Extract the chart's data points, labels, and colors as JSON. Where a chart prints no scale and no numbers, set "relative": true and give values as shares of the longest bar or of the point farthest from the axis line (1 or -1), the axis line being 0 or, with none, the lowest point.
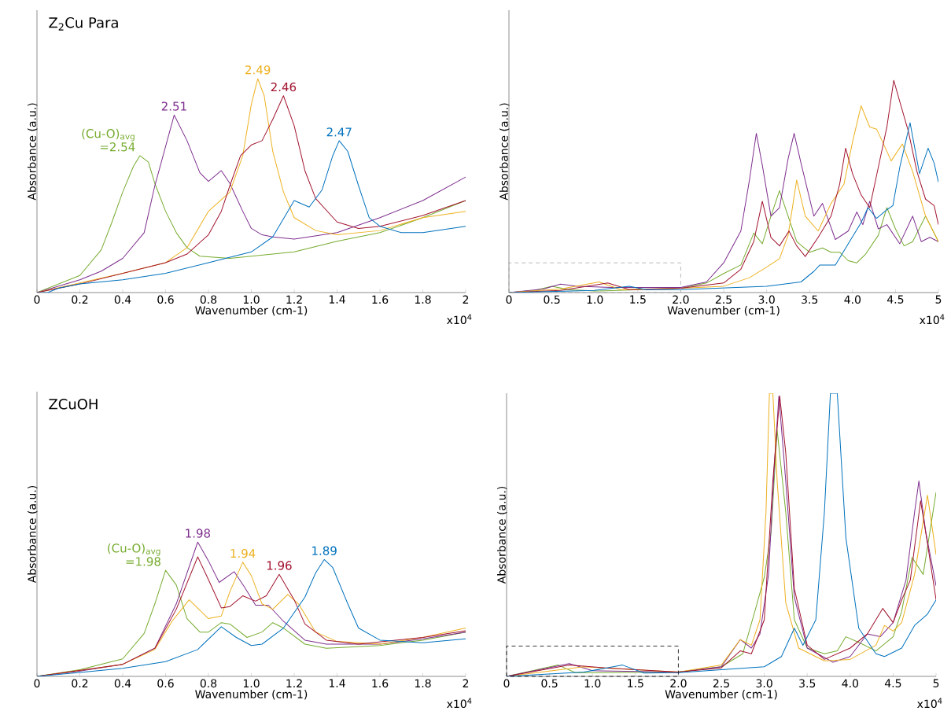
{
  "chart_data": [
    {
      "type": "line",
      "relative": true,
      "title": "Z$_{2}$Cu Para",
      "xlabel": "Wavenumber (cm-1)",
      "ylabel": "Absorbance (a.u.)",
      "xlim": [
        0,
        2
      ],
      "xticks": [
        0,
        0.2,
        0.4,
        0.6,
        0.8,
        {
          "value": 1.0,
          "label": "1.0"
        },
        1.2,
        1.4,
        1.6,
        1.8,
        2
      ],
      "series": [
        {
          "color": "#77ac30",
          "x": [
            0,
            0.1,
            0.2,
            0.3,
            0.35,
            0.4,
            0.45,
            0.48,
            0.52,
            0.55,
            0.6,
            0.65,
            0.7,
            0.76,
            0.9,
            1.0,
            1.2,
            1.4,
            1.6,
            1.8,
            2.0
          ],
          "values": [
            0,
            0.04,
            0.08,
            0.2,
            0.33,
            0.47,
            0.59,
            0.64,
            0.61,
            0.51,
            0.38,
            0.28,
            0.21,
            0.17,
            0.16,
            0.17,
            0.19,
            0.24,
            0.28,
            0.35,
            0.43
          ]
        },
        {
          "color": "#7e2f8e",
          "x": [
            0,
            0.2,
            0.3,
            0.4,
            0.5,
            0.55,
            0.64,
            0.7,
            0.76,
            0.8,
            0.86,
            0.9,
            0.96,
            1.0,
            1.05,
            1.1,
            1.2,
            1.4,
            1.6,
            1.8,
            2.0
          ],
          "values": [
            0,
            0.06,
            0.1,
            0.16,
            0.28,
            0.5,
            0.83,
            0.71,
            0.56,
            0.52,
            0.57,
            0.51,
            0.38,
            0.3,
            0.27,
            0.26,
            0.25,
            0.28,
            0.35,
            0.43,
            0.54
          ]
        },
        {
          "color": "#edb120",
          "x": [
            0,
            0.2,
            0.4,
            0.6,
            0.7,
            0.8,
            0.9,
            0.96,
            1.0,
            1.03,
            1.06,
            1.1,
            1.15,
            1.2,
            1.3,
            1.4,
            1.6,
            1.8,
            2.0
          ],
          "values": [
            0,
            0.045,
            0.09,
            0.14,
            0.21,
            0.38,
            0.47,
            0.64,
            0.88,
            1.0,
            0.92,
            0.66,
            0.47,
            0.35,
            0.29,
            0.27,
            0.29,
            0.35,
            0.38
          ]
        },
        {
          "color": "#a2142f",
          "x": [
            0,
            0.2,
            0.4,
            0.6,
            0.7,
            0.8,
            0.86,
            0.9,
            0.95,
            1.0,
            1.05,
            1.1,
            1.15,
            1.2,
            1.25,
            1.3,
            1.4,
            1.5,
            1.6,
            1.8,
            2.0
          ],
          "values": [
            0,
            0.04,
            0.09,
            0.14,
            0.18,
            0.27,
            0.38,
            0.5,
            0.64,
            0.69,
            0.71,
            0.81,
            0.92,
            0.78,
            0.57,
            0.44,
            0.33,
            0.3,
            0.31,
            0.36,
            0.43
          ]
        },
        {
          "color": "#0072bd",
          "x": [
            0,
            0.05,
            0.1,
            0.2,
            0.4,
            0.6,
            0.8,
            1.0,
            1.1,
            1.2,
            1.27,
            1.33,
            1.38,
            1.41,
            1.45,
            1.5,
            1.55,
            1.6,
            1.7,
            1.8,
            2.0
          ],
          "values": [
            0,
            0,
            0.02,
            0.04,
            0.06,
            0.09,
            0.14,
            0.19,
            0.26,
            0.43,
            0.4,
            0.48,
            0.64,
            0.71,
            0.66,
            0.5,
            0.35,
            0.31,
            0.28,
            0.28,
            0.31
          ]
        }
      ],
      "annotations": [
        {
          "text": "(Cu-O)$_{avg}$ =2.54",
          "x": 0.48,
          "y": 0.64
        },
        {
          "text": "2.51",
          "x": 0.64,
          "y": 0.83
        },
        {
          "text": "2.49",
          "x": 1.03,
          "y": 1.0
        },
        {
          "text": "2.46",
          "x": 1.15,
          "y": 0.92
        },
        {
          "text": "2.47",
          "x": 1.41,
          "y": 0.71
        },
        "x10$^{4}$"
      ]
    },
    {
      "type": "line",
      "relative": true,
      "xlabel": "Wavenumber (cm-1)",
      "ylabel": "Absorbance (a.u.)",
      "xlim": [
        0,
        5
      ],
      "xticks": [
        0,
        0.5,
        {
          "value": 1.0,
          "label": "1.0"
        },
        1.5,
        {
          "value": 2.0,
          "label": "2.0"
        },
        2.5,
        {
          "value": 3.0,
          "label": "3.0"
        },
        3.5,
        {
          "value": 4.0,
          "label": "4.0"
        },
        4.5,
        5
      ],
      "series": [
        {
          "color": "#77ac30",
          "x": [
            0,
            0.3,
            0.5,
            0.7,
            1.0,
            2.0,
            2.3,
            2.5,
            2.7,
            2.85,
            2.95,
            3.05,
            3.15,
            3.25,
            3.35,
            3.5,
            3.65,
            3.75,
            3.85,
            3.95,
            4.05,
            4.15,
            4.3,
            4.4,
            4.5,
            4.6,
            4.7,
            4.85,
            5.0
          ],
          "values": [
            0,
            0.01,
            0.03,
            0.014,
            0.007,
            0.02,
            0.045,
            0.09,
            0.13,
            0.28,
            0.23,
            0.36,
            0.48,
            0.36,
            0.24,
            0.19,
            0.21,
            0.19,
            0.19,
            0.15,
            0.14,
            0.18,
            0.27,
            0.4,
            0.3,
            0.22,
            0.24,
            0.36,
            0.24
          ]
        },
        {
          "color": "#7e2f8e",
          "x": [
            0,
            0.4,
            0.6,
            0.8,
            1.2,
            2.0,
            2.3,
            2.5,
            2.7,
            2.8,
            2.88,
            2.95,
            3.05,
            3.15,
            3.25,
            3.32,
            3.4,
            3.55,
            3.65,
            3.8,
            3.95,
            4.05,
            4.12,
            4.2,
            4.3,
            4.4,
            4.55,
            4.7,
            4.8,
            4.9,
            5.0
          ],
          "values": [
            0,
            0.017,
            0.04,
            0.03,
            0.024,
            0.024,
            0.05,
            0.14,
            0.29,
            0.53,
            0.75,
            0.6,
            0.36,
            0.4,
            0.63,
            0.75,
            0.61,
            0.36,
            0.42,
            0.25,
            0.29,
            0.38,
            0.32,
            0.43,
            0.3,
            0.32,
            0.23,
            0.36,
            0.24,
            0.26,
            0.24
          ]
        },
        {
          "color": "#edb120",
          "x": [
            0,
            0.6,
            1.05,
            1.3,
            2.0,
            2.5,
            2.8,
            3.0,
            3.15,
            3.25,
            3.35,
            3.45,
            3.6,
            3.75,
            3.9,
            4.0,
            4.1,
            4.2,
            4.28,
            4.35,
            4.45,
            4.58,
            4.7,
            4.85,
            5.0
          ],
          "values": [
            0,
            0.017,
            0.05,
            0.014,
            0.02,
            0.03,
            0.07,
            0.12,
            0.16,
            0.27,
            0.53,
            0.36,
            0.29,
            0.42,
            0.51,
            0.71,
            0.88,
            0.78,
            0.77,
            0.71,
            0.62,
            0.7,
            0.57,
            0.36,
            0.24
          ]
        },
        {
          "color": "#a2142f",
          "x": [
            0,
            0.6,
            1.15,
            1.4,
            2.0,
            2.5,
            2.7,
            2.85,
            2.95,
            3.05,
            3.15,
            3.26,
            3.35,
            3.45,
            3.6,
            3.75,
            3.85,
            3.92,
            4.0,
            4.1,
            4.2,
            4.3,
            4.4,
            4.48,
            4.55,
            4.65,
            4.75,
            4.85,
            4.95,
            5.0
          ],
          "values": [
            0,
            0.01,
            0.045,
            0.014,
            0.02,
            0.045,
            0.11,
            0.24,
            0.43,
            0.26,
            0.22,
            0.29,
            0.22,
            0.17,
            0.26,
            0.36,
            0.51,
            0.68,
            0.56,
            0.46,
            0.4,
            0.59,
            0.78,
            1.0,
            0.9,
            0.76,
            0.57,
            0.44,
            0.41,
            0.32
          ]
        },
        {
          "color": "#0072bd",
          "x": [
            0,
            1.0,
            1.4,
            1.6,
            2.0,
            3.0,
            3.4,
            3.55,
            3.62,
            3.8,
            3.95,
            4.1,
            4.18,
            4.28,
            4.4,
            4.47,
            4.55,
            4.67,
            4.78,
            4.88,
            4.95,
            5.0
          ],
          "values": [
            0,
            0.01,
            0.03,
            0.014,
            0.014,
            0.03,
            0.05,
            0.1,
            0.13,
            0.13,
            0.23,
            0.33,
            0.4,
            0.35,
            0.39,
            0.41,
            0.59,
            0.8,
            0.56,
            0.68,
            0.61,
            0.52
          ]
        }
      ],
      "annotations": [
        "x10$^{4}$"
      ]
    },
    {
      "type": "line",
      "relative": true,
      "title": "ZCuOH",
      "xlabel": "Wavenumber (cm-1)",
      "ylabel": "Absorbance (a.u.)",
      "xlim": [
        0,
        2
      ],
      "xticks": [
        0,
        0.2,
        0.4,
        0.6,
        0.8,
        {
          "value": 1.0,
          "label": "1.0"
        },
        1.2,
        1.4,
        1.6,
        1.8,
        2
      ],
      "series": [
        {
          "color": "#77ac30",
          "x": [
            0,
            0.2,
            0.4,
            0.5,
            0.55,
            0.6,
            0.65,
            0.7,
            0.76,
            0.8,
            0.86,
            0.9,
            0.98,
            1.05,
            1.1,
            1.15,
            1.25,
            1.35,
            1.6,
            1.8,
            2.0
          ],
          "values": [
            0,
            0.05,
            0.13,
            0.32,
            0.54,
            0.79,
            0.68,
            0.43,
            0.33,
            0.33,
            0.4,
            0.39,
            0.29,
            0.33,
            0.4,
            0.36,
            0.24,
            0.21,
            0.23,
            0.27,
            0.33
          ]
        },
        {
          "color": "#7e2f8e",
          "x": [
            0,
            0.2,
            0.4,
            0.55,
            0.65,
            0.75,
            0.8,
            0.85,
            0.92,
            0.97,
            1.02,
            1.08,
            1.15,
            1.25,
            1.35,
            1.6,
            1.8,
            2.0
          ],
          "values": [
            0,
            0.04,
            0.09,
            0.21,
            0.54,
            1.0,
            0.86,
            0.7,
            0.78,
            0.66,
            0.53,
            0.53,
            0.41,
            0.27,
            0.24,
            0.24,
            0.28,
            0.33
          ]
        },
        {
          "color": "#edb120",
          "x": [
            0,
            0.4,
            0.55,
            0.63,
            0.71,
            0.8,
            0.86,
            0.9,
            0.96,
            1.0,
            1.05,
            1.1,
            1.17,
            1.22,
            1.3,
            1.4,
            1.6,
            1.8,
            2.0
          ],
          "values": [
            0,
            0.09,
            0.2,
            0.41,
            0.57,
            0.43,
            0.45,
            0.63,
            0.85,
            0.75,
            0.54,
            0.5,
            0.61,
            0.54,
            0.33,
            0.26,
            0.24,
            0.29,
            0.36
          ]
        },
        {
          "color": "#a2142f",
          "x": [
            0,
            0.4,
            0.55,
            0.65,
            0.75,
            0.8,
            0.86,
            0.9,
            0.96,
            1.02,
            1.07,
            1.13,
            1.2,
            1.25,
            1.35,
            1.5,
            1.8,
            2.0
          ],
          "values": [
            0,
            0.09,
            0.21,
            0.5,
            0.89,
            0.72,
            0.51,
            0.52,
            0.6,
            0.56,
            0.6,
            0.76,
            0.57,
            0.39,
            0.27,
            0.24,
            0.29,
            0.34
          ]
        },
        {
          "color": "#0072bd",
          "x": [
            0,
            0.2,
            0.4,
            0.6,
            0.75,
            0.86,
            0.93,
            1.0,
            1.05,
            1.15,
            1.25,
            1.3,
            1.34,
            1.38,
            1.45,
            1.5,
            1.6,
            1.8,
            2.0
          ],
          "values": [
            0,
            0.03,
            0.06,
            0.11,
            0.2,
            0.37,
            0.29,
            0.23,
            0.24,
            0.36,
            0.59,
            0.77,
            0.87,
            0.81,
            0.54,
            0.36,
            0.27,
            0.25,
            0.28
          ]
        }
      ],
      "annotations": [
        {
          "text": "(Cu-O)$_{avg}$ =1.98",
          "x": 0.6,
          "y": 0.79
        },
        {
          "text": "1.98",
          "x": 0.75,
          "y": 1.0
        },
        {
          "text": "1.94",
          "x": 0.96,
          "y": 0.85
        },
        {
          "text": "1.96",
          "x": 1.13,
          "y": 0.76
        },
        {
          "text": "1.89",
          "x": 1.34,
          "y": 0.87
        },
        "x10$^{4}$"
      ]
    },
    {
      "type": "line",
      "relative": true,
      "xlabel": "Wavenumber (cm-1)",
      "ylabel": "Absorbance (a.u.)",
      "xlim": [
        0,
        5
      ],
      "xticks": [
        0,
        0.5,
        {
          "value": 1.0,
          "label": "1.0"
        },
        1.5,
        {
          "value": 2.0,
          "label": "2.0"
        },
        2.5,
        {
          "value": 3.0,
          "label": "3.0"
        },
        3.5,
        {
          "value": 4.0,
          "label": "4.0"
        },
        4.5,
        5
      ],
      "series": [
        {
          "color": "#77ac30",
          "x": [
            0,
            0.6,
            0.8,
            2.0,
            2.5,
            2.75,
            2.9,
            3.0,
            3.08,
            3.15,
            3.25,
            3.35,
            3.5,
            3.7,
            3.85,
            3.95,
            4.1,
            4.3,
            4.5,
            4.6,
            4.72,
            4.85,
            5.0
          ],
          "values": [
            0,
            0.04,
            0.013,
            0.015,
            0.034,
            0.08,
            0.24,
            0.35,
            0.51,
            0.87,
            0.58,
            0.2,
            0.1,
            0.08,
            0.09,
            0.14,
            0.12,
            0.09,
            0.14,
            0.23,
            0.42,
            0.36,
            0.65
          ]
        },
        {
          "color": "#7e2f8e",
          "x": [
            0,
            0.73,
            1.0,
            2.0,
            2.5,
            2.72,
            2.85,
            2.95,
            3.05,
            3.12,
            3.17,
            3.25,
            3.35,
            3.5,
            3.8,
            4.0,
            4.2,
            4.35,
            4.5,
            4.65,
            4.75,
            4.8,
            4.88,
            5.0
          ],
          "values": [
            0,
            0.045,
            0.02,
            0.015,
            0.034,
            0.13,
            0.1,
            0.15,
            0.36,
            0.76,
            0.99,
            0.69,
            0.28,
            0.1,
            0.05,
            0.07,
            0.15,
            0.14,
            0.19,
            0.34,
            0.58,
            0.69,
            0.51,
            0.32
          ]
        },
        {
          "color": "#edb120",
          "x": [
            0,
            0.9,
            2.0,
            2.5,
            2.72,
            2.85,
            2.95,
            3.02,
            3.06,
            3.1,
            3.15,
            3.25,
            3.4,
            3.7,
            4.0,
            4.3,
            4.4,
            4.5,
            4.6,
            4.75,
            4.9,
            5.0
          ],
          "values": [
            0,
            0.034,
            0.015,
            0.04,
            0.13,
            0.11,
            0.2,
            0.58,
            1.0,
            1.0,
            0.69,
            0.26,
            0.1,
            0.055,
            0.06,
            0.11,
            0.18,
            0.16,
            0.19,
            0.36,
            0.64,
            0.43
          ]
        },
        {
          "color": "#a2142f",
          "x": [
            0,
            0.73,
            1.15,
            2.0,
            2.5,
            2.72,
            2.85,
            3.0,
            3.1,
            3.18,
            3.25,
            3.35,
            3.5,
            3.7,
            4.0,
            4.2,
            4.38,
            4.5,
            4.6,
            4.7,
            4.82,
            4.9,
            5.0
          ],
          "values": [
            0,
            0.04,
            0.03,
            0.015,
            0.03,
            0.09,
            0.08,
            0.2,
            0.69,
            0.99,
            0.79,
            0.31,
            0.11,
            0.06,
            0.1,
            0.15,
            0.24,
            0.19,
            0.27,
            0.34,
            0.62,
            0.47,
            0.27
          ]
        },
        {
          "color": "#0072bd",
          "x": [
            0,
            0.9,
            1.35,
            1.6,
            2.0,
            3.0,
            3.2,
            3.35,
            3.45,
            3.6,
            3.7,
            3.77,
            3.85,
            3.95,
            4.1,
            4.3,
            4.4,
            4.6,
            4.75,
            4.9,
            5.0
          ],
          "values": [
            0,
            0.015,
            0.04,
            0.012,
            0.013,
            0.034,
            0.07,
            0.17,
            0.11,
            0.2,
            0.58,
            1.0,
            1.0,
            0.49,
            0.17,
            0.08,
            0.07,
            0.1,
            0.18,
            0.22,
            0.27
          ]
        }
      ],
      "annotations": [
        "x10$^{4}$"
      ]
    }
  ]
}
